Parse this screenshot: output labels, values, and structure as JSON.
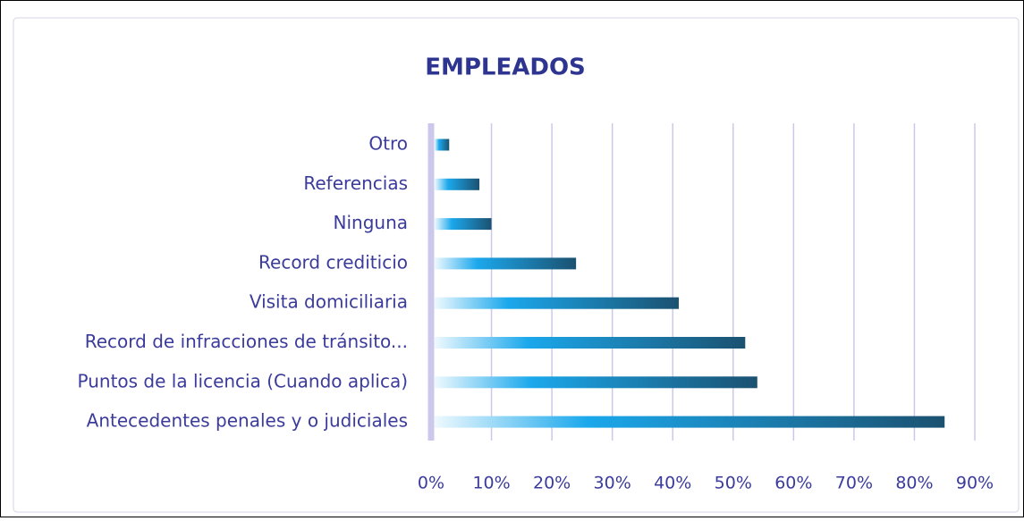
{
  "chart_data": {
    "type": "barh",
    "title": "EMPLEADOS",
    "categories": [
      "Otro",
      "Referencias",
      "Ninguna",
      "Record crediticio",
      "Visita domiciliaria",
      "Record de infracciones de tránsito...",
      "Puntos de la licencia (Cuando aplica)",
      "Antecedentes penales y o judiciales"
    ],
    "values": [
      3,
      8,
      10,
      24,
      41,
      52,
      54,
      85
    ],
    "colors": [
      "#eef9fe",
      "#1ba8ec",
      "#1b5170"
    ],
    "xlim": [
      0,
      90
    ],
    "xticks": [
      {
        "value": 0,
        "label": "0%"
      },
      {
        "value": 10,
        "label": "10%"
      },
      {
        "value": 20,
        "label": "20%"
      },
      {
        "value": 30,
        "label": "30%"
      },
      {
        "value": 40,
        "label": "40%"
      },
      {
        "value": 50,
        "label": "50%"
      },
      {
        "value": 60,
        "label": "60%"
      },
      {
        "value": 70,
        "label": "70%"
      },
      {
        "value": 80,
        "label": "80%"
      },
      {
        "value": 90,
        "label": "90%"
      }
    ],
    "grid": true
  }
}
